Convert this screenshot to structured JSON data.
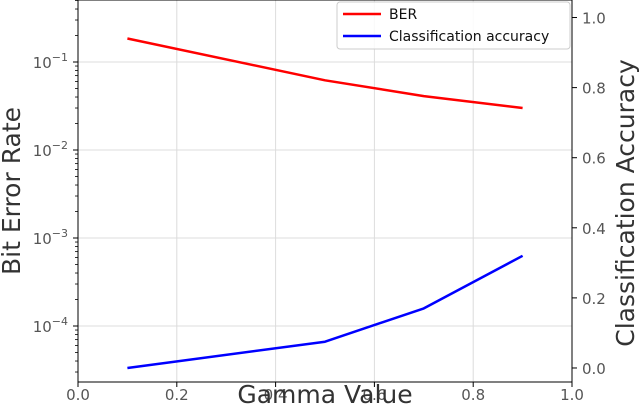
{
  "chart_data": {
    "type": "line",
    "title": "",
    "xlabel": "Gamma Value",
    "ylabel_left": "Bit Error Rate",
    "ylabel_right": "Classification Accuracy",
    "xlim": [
      0.0,
      1.0
    ],
    "x_ticks": [
      "0.0",
      "0.2",
      "0.4",
      "0.6",
      "0.8",
      "1.0"
    ],
    "y_left_scale": "log",
    "y_left_ticks": [
      {
        "base": "10",
        "exp": "−1"
      },
      {
        "base": "10",
        "exp": "−2"
      },
      {
        "base": "10",
        "exp": "−3"
      },
      {
        "base": "10",
        "exp": "−4"
      }
    ],
    "y_right_lim": [
      -0.04,
      1.05
    ],
    "y_right_ticks": [
      "0.0",
      "0.2",
      "0.4",
      "0.6",
      "0.8",
      "1.0"
    ],
    "grid": true,
    "legend_position": "top-right",
    "series": [
      {
        "name": "BER",
        "axis": "left",
        "color": "#ff0000",
        "x": [
          0.1,
          0.5,
          0.7,
          0.9
        ],
        "y": [
          0.185,
          0.062,
          0.041,
          0.03
        ]
      },
      {
        "name": "Classification accuracy",
        "axis": "right",
        "color": "#0000ff",
        "x": [
          0.1,
          0.5,
          0.7,
          0.9
        ],
        "y": [
          0.0,
          0.075,
          0.17,
          0.32
        ]
      }
    ]
  }
}
